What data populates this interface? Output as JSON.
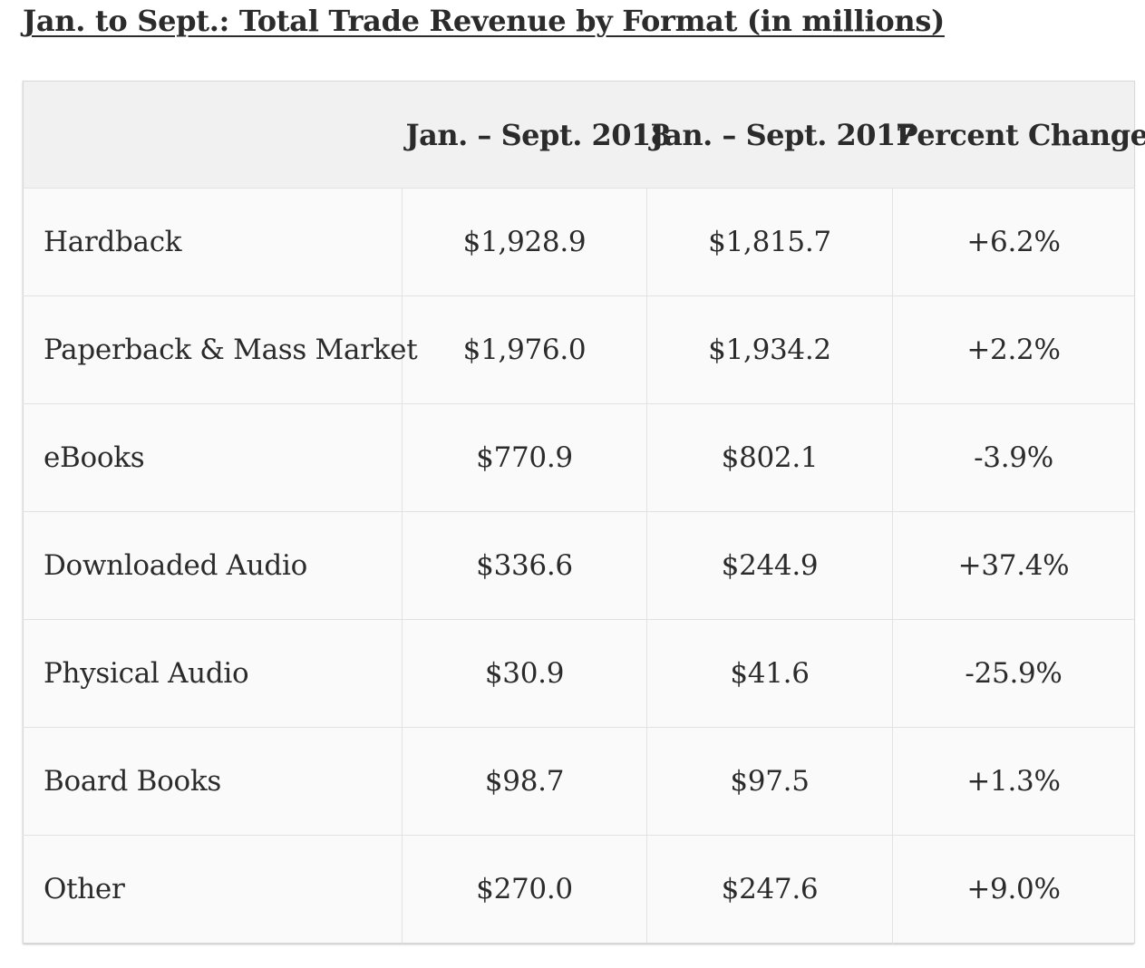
{
  "title": "Jan. to Sept.: Total Trade Revenue by Format (in millions)",
  "table": {
    "headers": [
      "",
      "Jan. – Sept. 2018",
      "Jan. – Sept. 2017",
      "Percent Change"
    ],
    "rows": [
      {
        "format": "Hardback",
        "y2018": "$1,928.9",
        "y2017": "$1,815.7",
        "change": "+6.2%"
      },
      {
        "format": "Paperback & Mass Market",
        "y2018": "$1,976.0",
        "y2017": "$1,934.2",
        "change": "+2.2%"
      },
      {
        "format": "eBooks",
        "y2018": "$770.9",
        "y2017": "$802.1",
        "change": "-3.9%"
      },
      {
        "format": "Downloaded Audio",
        "y2018": "$336.6",
        "y2017": "$244.9",
        "change": "+37.4%"
      },
      {
        "format": "Physical Audio",
        "y2018": "$30.9",
        "y2017": "$41.6",
        "change": "-25.9%"
      },
      {
        "format": "Board Books",
        "y2018": "$98.7",
        "y2017": "$97.5",
        "change": "+1.3%"
      },
      {
        "format": "Other",
        "y2018": "$270.0",
        "y2017": "$247.6",
        "change": "+9.0%"
      }
    ]
  }
}
